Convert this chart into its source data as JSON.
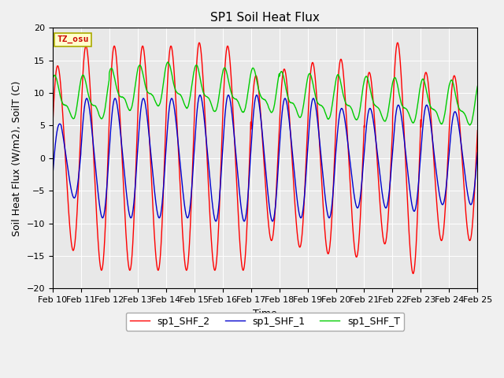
{
  "title": "SP1 Soil Heat Flux",
  "xlabel": "Time",
  "ylabel": "Soil Heat Flux (W/m2), SoilT (C)",
  "annotation": "TZ_osu",
  "ylim": [
    -20,
    20
  ],
  "tick_labels": [
    "Feb 10",
    "Feb 11",
    "Feb 12",
    "Feb 13",
    "Feb 14",
    "Feb 15",
    "Feb 16",
    "Feb 17",
    "Feb 18",
    "Feb 19",
    "Feb 20",
    "Feb 21",
    "Feb 22",
    "Feb 23",
    "Feb 24",
    "Feb 25"
  ],
  "legend_entries": [
    "sp1_SHF_2",
    "sp1_SHF_1",
    "sp1_SHF_T"
  ],
  "color_shf2": "#ff0000",
  "color_shf1": "#0000cc",
  "color_shfT": "#00cc00",
  "fig_color": "#f0f0f0",
  "bg_color": "#e8e8e8",
  "title_fontsize": 11,
  "axis_label_fontsize": 9,
  "tick_fontsize": 8,
  "legend_fontsize": 9,
  "linewidth": 1.0
}
